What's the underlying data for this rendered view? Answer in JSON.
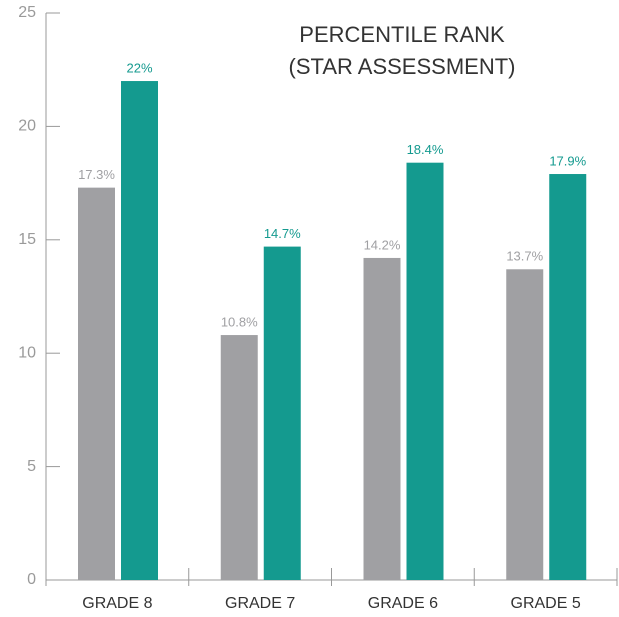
{
  "chart_data": {
    "type": "bar",
    "title": [
      "PERCENTILE RANK",
      "(STAR ASSESSMENT)"
    ],
    "categories": [
      "GRADE 8",
      "GRADE 7",
      "GRADE 6",
      "GRADE 5"
    ],
    "series": [
      {
        "color": "#a0a0a3",
        "values": [
          17.3,
          10.8,
          14.2,
          13.7
        ],
        "value_labels": [
          "17.3%",
          "10.8%",
          "14.2%",
          "13.7%"
        ]
      },
      {
        "color": "#149a8f",
        "values": [
          22,
          14.7,
          18.4,
          17.9
        ],
        "value_labels": [
          "22%",
          "14.7%",
          "18.4%",
          "17.9%"
        ]
      }
    ],
    "ylim": [
      0,
      25
    ],
    "yticks": [
      0,
      5,
      10,
      15,
      20,
      25
    ],
    "grid": false
  }
}
